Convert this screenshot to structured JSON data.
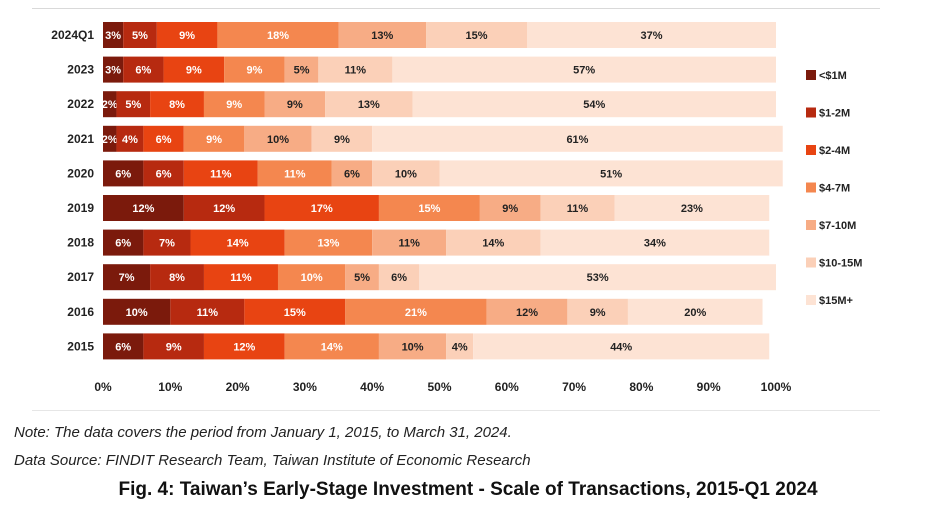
{
  "chart_data": {
    "type": "bar",
    "orientation": "horizontal",
    "stacked": "percent",
    "categories": [
      "2024Q1",
      "2023",
      "2022",
      "2021",
      "2020",
      "2019",
      "2018",
      "2017",
      "2016",
      "2015"
    ],
    "series": [
      {
        "name": "<$1M",
        "color": "#7b1a0c",
        "values": [
          3,
          3,
          2,
          2,
          6,
          12,
          6,
          7,
          10,
          6
        ]
      },
      {
        "name": "$1-2M",
        "color": "#b72a10",
        "values": [
          5,
          6,
          5,
          4,
          6,
          12,
          7,
          8,
          11,
          9
        ]
      },
      {
        "name": "$2-4M",
        "color": "#e84412",
        "values": [
          9,
          9,
          8,
          6,
          11,
          17,
          14,
          11,
          15,
          12
        ]
      },
      {
        "name": "$4-7M",
        "color": "#f4874f",
        "values": [
          18,
          9,
          9,
          9,
          11,
          15,
          13,
          10,
          21,
          14
        ]
      },
      {
        "name": "$7-10M",
        "color": "#f7ac85",
        "values": [
          13,
          5,
          9,
          10,
          6,
          9,
          11,
          5,
          12,
          10
        ]
      },
      {
        "name": "$10-15M",
        "color": "#fbd0b8",
        "values": [
          15,
          11,
          13,
          9,
          10,
          11,
          14,
          6,
          9,
          4
        ]
      },
      {
        "name": "$15M+",
        "color": "#fde3d4",
        "values": [
          37,
          57,
          54,
          61,
          51,
          23,
          34,
          53,
          20,
          44
        ]
      }
    ],
    "x_ticks": [
      "0%",
      "10%",
      "20%",
      "30%",
      "40%",
      "50%",
      "60%",
      "70%",
      "80%",
      "90%",
      "100%"
    ],
    "xlim": [
      0,
      100
    ],
    "legend_position": "right",
    "grid": false
  },
  "note": "Note: The data covers the period from January 1, 2015, to March 31, 2024.",
  "source": "Data Source: FINDIT Research Team, Taiwan Institute of Economic Research",
  "figure_title": "Fig. 4: Taiwan’s Early-Stage Investment - Scale of Transactions, 2015-Q1 2024"
}
